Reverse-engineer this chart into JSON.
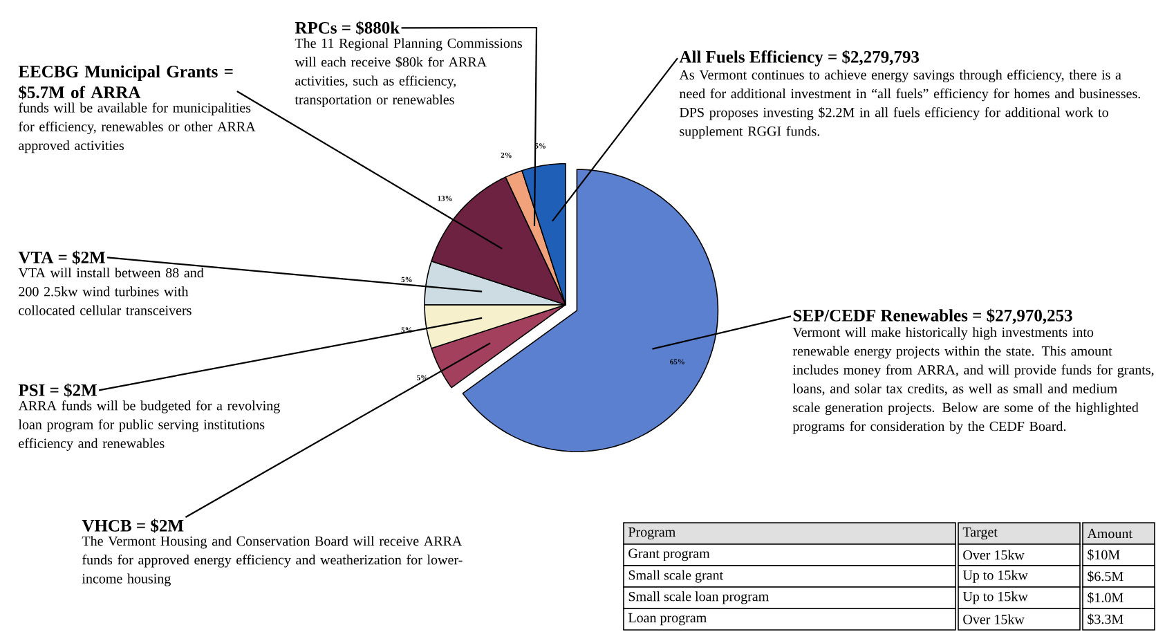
{
  "chart_data": {
    "type": "pie",
    "categories": [
      "SEP/CEDF Renewables = $27,970,253",
      "VHCB = $2M",
      "PSI = $2M",
      "VTA = $2M",
      "EECBG Municipal Grants = $5.7M of ARRA",
      "RPCs = $880k",
      "All Fuels Efficiency = $2,279,793"
    ],
    "values": [
      65,
      5,
      5,
      5,
      13,
      2,
      5
    ],
    "value_labels": [
      "65%",
      "5%",
      "5%",
      "5%",
      "13%",
      "2%",
      "5%"
    ],
    "colors": [
      "#5b80cf",
      "#a3405e",
      "#f6f1cc",
      "#cddbe3",
      "#6e2242",
      "#f2a27a",
      "#1f5fb8"
    ],
    "annotations": [
      "Vermont will make historically high investments into renewable energy projects within the state.  This amount includes money from ARRA, and will provide funds for grants, loans, and solar tax credits, as well as small and medium scale generation projects.  Below are some of the highlighted programs for consideration by the CEDF Board.",
      "The Vermont Housing and Conservation Board will receive ARRA funds for approved energy efficiency and weatherization for lower-income housing",
      "ARRA funds will be budgeted for a revolving loan program for public serving institutions efficiency and renewables",
      "VTA will install between 88 and 200 2.5kw wind turbines with collocated cellular transceivers",
      "funds will be available for municipalities for efficiency, renewables or other ARRA approved activities",
      "The 11 Regional Planning Commissions will each receive $80k for ARRA activities, such as efficiency, transportation or renewables",
      "As Vermont continues to achieve energy savings through efficiency, there is a need for additional investment in “all fuels” efficiency for homes and businesses.  DPS proposes investing $2.2M in all fuels efficiency for additional work to supplement RGGI funds.",
      "Program",
      "Target",
      "Amount",
      "Grant program",
      "Over 15kw",
      "$10M",
      "Small scale grant",
      "Up to 15kw",
      "$6.5M",
      "Small scale loan program",
      "Up to 15kw",
      "$1.0M",
      "Loan program",
      "Over 15kw",
      "$3.3M"
    ]
  }
}
